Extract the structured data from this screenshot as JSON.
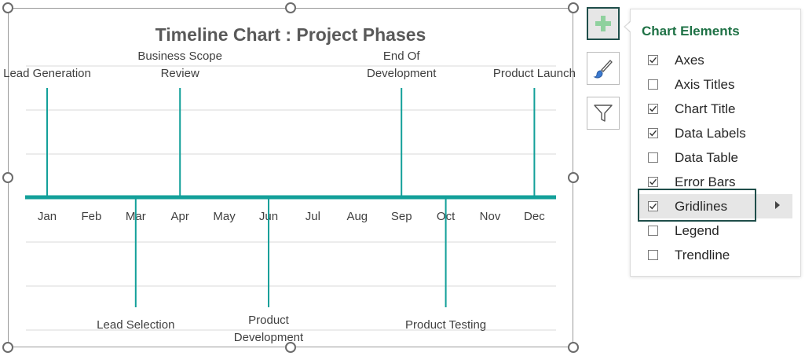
{
  "chart": {
    "title": "Timeline Chart : Project Phases",
    "months": [
      "Jan",
      "Feb",
      "Mar",
      "Apr",
      "May",
      "Jun",
      "Jul",
      "Aug",
      "Sep",
      "Oct",
      "Nov",
      "Dec"
    ],
    "milestones": [
      {
        "lines": [
          "Lead Generation"
        ],
        "month": "Jan",
        "direction": "up"
      },
      {
        "lines": [
          "Lead Selection"
        ],
        "month": "Mar",
        "direction": "down"
      },
      {
        "lines": [
          "Business Scope",
          "Review"
        ],
        "month": "Apr",
        "direction": "up"
      },
      {
        "lines": [
          "Product",
          "Development"
        ],
        "month": "Jun",
        "direction": "down"
      },
      {
        "lines": [
          "End Of",
          "Development"
        ],
        "month": "Sep",
        "direction": "up"
      },
      {
        "lines": [
          "Product Testing"
        ],
        "month": "Oct",
        "direction": "down"
      },
      {
        "lines": [
          "Product Launch"
        ],
        "month": "Dec",
        "direction": "up"
      }
    ],
    "colors": {
      "timeline": "#13a09a",
      "gridline": "#d9d9d9",
      "title": "#595959",
      "label": "#404040"
    }
  },
  "toolbar": {
    "add_elements_icon": "plus-icon",
    "style_icon": "paintbrush-icon",
    "filter_icon": "funnel-icon"
  },
  "panel": {
    "title": "Chart Elements",
    "items": [
      {
        "label": "Axes",
        "checked": true
      },
      {
        "label": "Axis Titles",
        "checked": false
      },
      {
        "label": "Chart Title",
        "checked": true
      },
      {
        "label": "Data Labels",
        "checked": true
      },
      {
        "label": "Data Table",
        "checked": false
      },
      {
        "label": "Error Bars",
        "checked": true
      },
      {
        "label": "Gridlines",
        "checked": true,
        "selected": true
      },
      {
        "label": "Legend",
        "checked": false
      },
      {
        "label": "Trendline",
        "checked": false
      }
    ]
  }
}
